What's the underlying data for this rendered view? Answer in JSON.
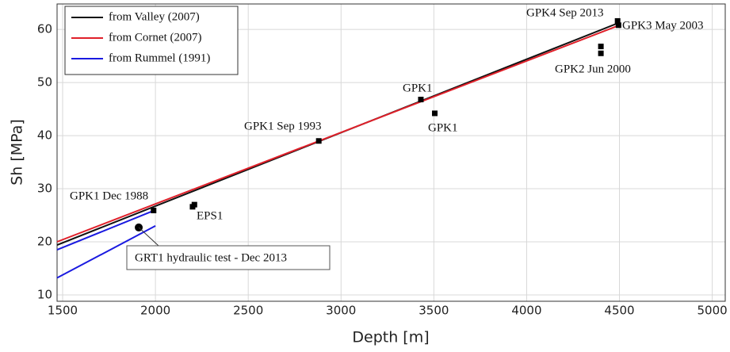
{
  "chart_data": {
    "type": "line",
    "xlabel": "Depth [m]",
    "ylabel": "Sh [MPa]",
    "xlim": [
      1470,
      5070
    ],
    "ylim": [
      8.8,
      64.8
    ],
    "xticks": [
      1500,
      2000,
      2500,
      3000,
      3500,
      4000,
      4500,
      5000
    ],
    "yticks": [
      10,
      20,
      30,
      40,
      50,
      60
    ],
    "grid": true,
    "legend": "upper left",
    "series": [
      {
        "name": "from Valley (2007)",
        "color": "#111111",
        "x": [
          1470,
          4500
        ],
        "values": [
          19.4,
          61.3
        ]
      },
      {
        "name": "from Cornet (2007)",
        "color": "#e0202a",
        "x": [
          1470,
          4500
        ],
        "values": [
          20.0,
          60.8
        ]
      },
      {
        "name": "from Rummel (1991)",
        "color": "#1a1ae0",
        "x": [
          1470,
          2000,
          null,
          1470,
          2000
        ],
        "values": [
          18.5,
          26.0,
          null,
          13.2,
          23.0
        ]
      }
    ],
    "points": {
      "x": [
        1990,
        2200,
        2210,
        2880,
        3430,
        3505,
        4400,
        4400,
        4490,
        4495,
        1910
      ],
      "values": [
        25.9,
        26.6,
        27.0,
        39.0,
        46.8,
        44.2,
        56.8,
        55.5,
        61.6,
        60.8,
        22.7
      ],
      "shape": [
        "square",
        "square",
        "square",
        "square",
        "square",
        "square",
        "square",
        "square",
        "square",
        "square",
        "circle"
      ],
      "color": "#000000"
    },
    "annotations": [
      "GPK1 Dec 1988",
      "EPS1",
      "GPK1  Sep  1993",
      "GPK1",
      "GPK1",
      "GPK2  Jun 2000",
      "GPK4  Sep  2013",
      "GPK3 May 2003",
      "GRT1  hydraulic  test - Dec 2013"
    ]
  }
}
